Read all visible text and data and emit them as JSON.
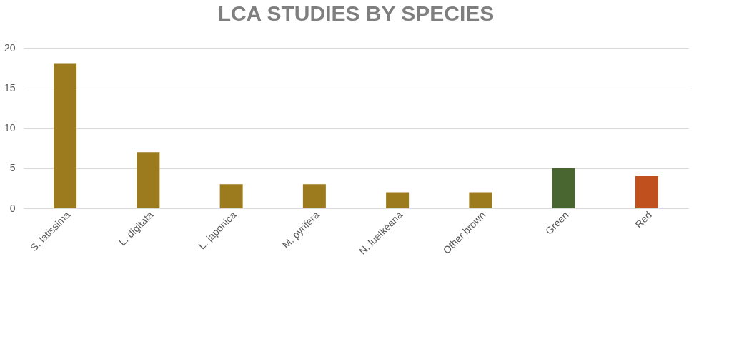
{
  "chart_data": {
    "type": "bar",
    "title": "LCA STUDIES BY SPECIES",
    "categories": [
      "S. latissima",
      "L. digitata",
      "L. japonica",
      "M. pyrifera",
      "N. luetkeana",
      "Other brown",
      "Green",
      "Red"
    ],
    "values": [
      18,
      7,
      3,
      3,
      2,
      2,
      5,
      4
    ],
    "colors": [
      "#9c7a1e",
      "#9c7a1e",
      "#9c7a1e",
      "#9c7a1e",
      "#9c7a1e",
      "#9c7a1e",
      "#4a6630",
      "#c0501e"
    ],
    "ylim": [
      0,
      20
    ],
    "yticks": [
      0,
      5,
      10,
      15,
      20
    ],
    "grid": "y"
  }
}
